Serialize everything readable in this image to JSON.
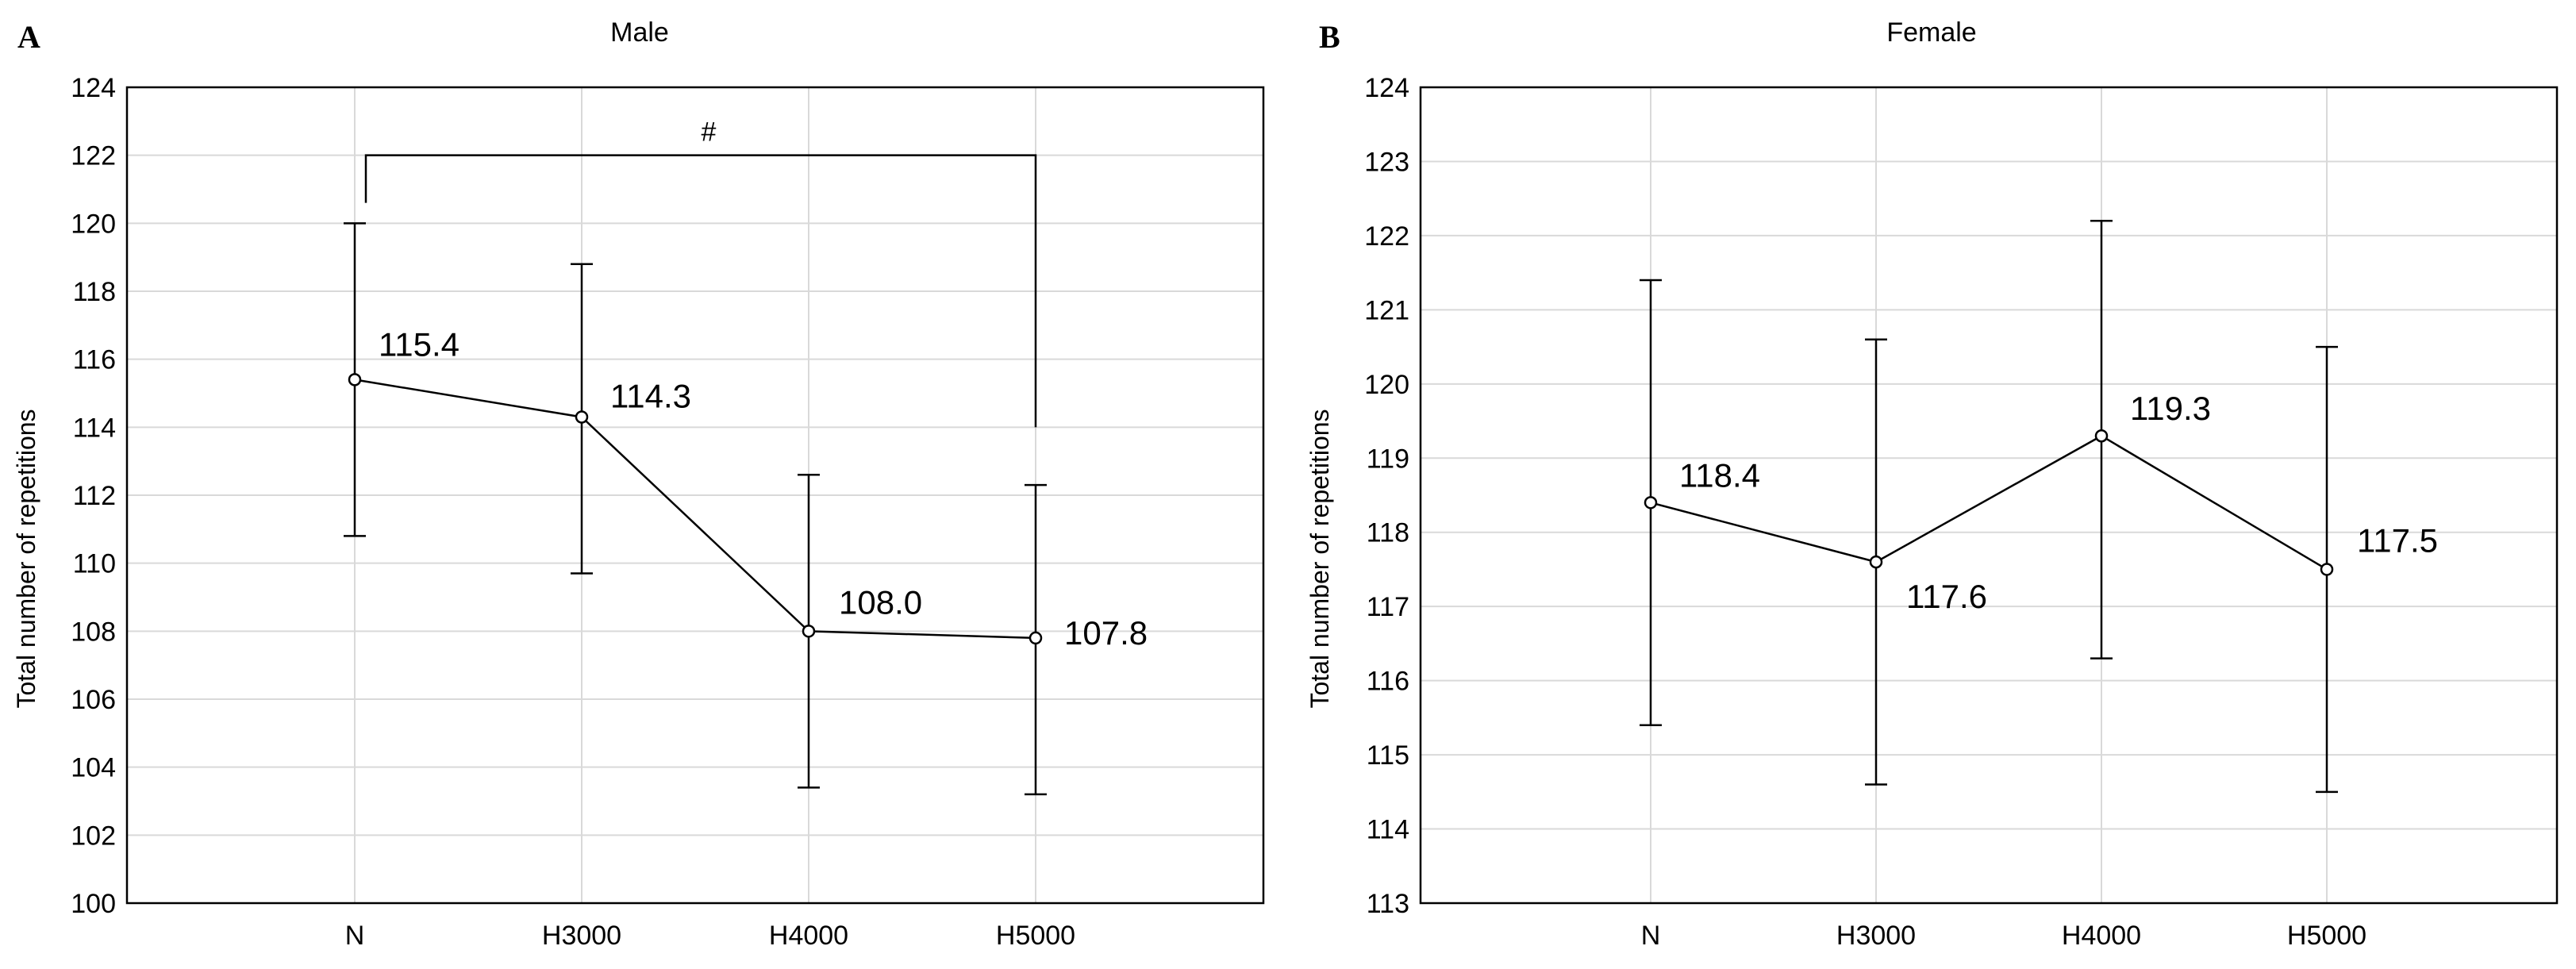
{
  "chart_data": [
    {
      "panel": "A",
      "type": "line",
      "title": "Male",
      "xlabel": "",
      "ylabel": "Total number of repetitions",
      "categories": [
        "N",
        "H3000",
        "H4000",
        "H5000"
      ],
      "values": [
        115.4,
        114.3,
        108.0,
        107.8
      ],
      "value_labels": [
        "115.4",
        "114.3",
        "108.0",
        "107.8"
      ],
      "error_low": [
        110.8,
        109.7,
        103.4,
        103.2
      ],
      "error_high": [
        120.0,
        118.8,
        112.6,
        112.3
      ],
      "ylim": [
        100,
        124
      ],
      "yticks": [
        100,
        102,
        104,
        106,
        108,
        110,
        112,
        114,
        116,
        118,
        120,
        122,
        124
      ],
      "grid": true,
      "annotation": {
        "text": "#",
        "from": "N",
        "to": "H5000",
        "level": 122,
        "left_end": 120.6,
        "right_end": 114
      }
    },
    {
      "panel": "B",
      "type": "line",
      "title": "Female",
      "xlabel": "",
      "ylabel": "Total number of repetitions",
      "categories": [
        "N",
        "H3000",
        "H4000",
        "H5000"
      ],
      "values": [
        118.4,
        117.6,
        119.3,
        117.5
      ],
      "value_labels": [
        "118.4",
        "117.6",
        "119.3",
        "117.5"
      ],
      "error_low": [
        115.4,
        114.6,
        116.3,
        114.5
      ],
      "error_high": [
        121.4,
        120.6,
        122.2,
        120.5
      ],
      "ylim": [
        113,
        124
      ],
      "yticks": [
        113,
        114,
        115,
        116,
        117,
        118,
        119,
        120,
        121,
        122,
        123,
        124
      ],
      "grid": true
    }
  ]
}
